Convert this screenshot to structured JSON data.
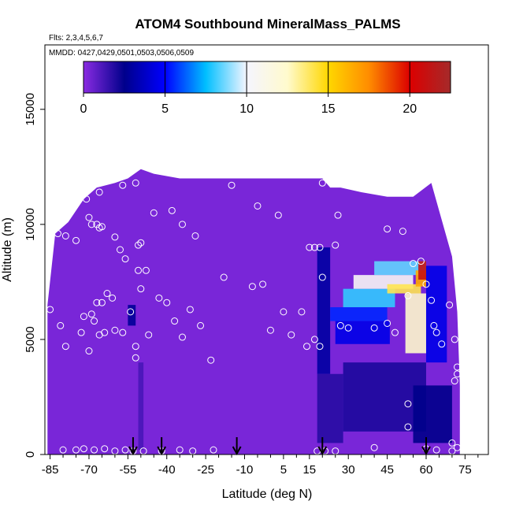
{
  "chart_data": {
    "type": "heatmap",
    "title": "ATOM4 Southbound MineralMass_PALMS",
    "flights_note": "Flts: 2,3,4,5,6,7",
    "dates_note": "MMDD: 0427,0429,0501,0503,0506,0509",
    "xlabel": "Latitude (deg N)",
    "ylabel": "Altitude (m)",
    "xlim": [
      -87,
      84
    ],
    "ylim": [
      0,
      17800
    ],
    "x_ticks": [
      -85,
      -70,
      -55,
      -40,
      -25,
      -10,
      5,
      15,
      30,
      45,
      60,
      75
    ],
    "x_tick_labels": [
      "-85",
      "-70",
      "-55",
      "-40",
      "-25",
      "-10",
      "5",
      "15",
      "30",
      "45",
      "60",
      "75"
    ],
    "y_ticks": [
      0,
      5000,
      10000,
      15000
    ],
    "y_tick_labels": [
      "0",
      "5000",
      "10000",
      "15000"
    ],
    "colorbar": {
      "min": 0,
      "max": 22.5,
      "ticks": [
        0,
        5,
        10,
        15,
        20
      ],
      "tick_labels": [
        "0",
        "5",
        "10",
        "15",
        "20"
      ],
      "stops": [
        {
          "v": 0,
          "color": "#8a2be2"
        },
        {
          "v": 2.5,
          "color": "#00008b"
        },
        {
          "v": 5,
          "color": "#0000ff"
        },
        {
          "v": 7.5,
          "color": "#00bfff"
        },
        {
          "v": 10,
          "color": "#f5f5ff"
        },
        {
          "v": 12.5,
          "color": "#fffacd"
        },
        {
          "v": 15,
          "color": "#ffd700"
        },
        {
          "v": 17.5,
          "color": "#ff8c00"
        },
        {
          "v": 20,
          "color": "#dc0000"
        },
        {
          "v": 22.5,
          "color": "#a52a2a"
        }
      ]
    },
    "background_value": 0.3,
    "curtain_profile": [
      [
        -86,
        0,
        6500
      ],
      [
        -83,
        0,
        9600
      ],
      [
        -78,
        0,
        10100
      ],
      [
        -72,
        0,
        11100
      ],
      [
        -67,
        0,
        11600
      ],
      [
        -60,
        0,
        11800
      ],
      [
        -55,
        0,
        12000
      ],
      [
        -50,
        0,
        12400
      ],
      [
        -45,
        0,
        12200
      ],
      [
        -35,
        0,
        12000
      ],
      [
        -20,
        0,
        12000
      ],
      [
        0,
        0,
        12000
      ],
      [
        20,
        0,
        12000
      ],
      [
        23,
        0,
        11600
      ],
      [
        27,
        0,
        11600
      ],
      [
        35,
        0,
        11400
      ],
      [
        45,
        0,
        11200
      ],
      [
        55,
        0,
        11200
      ],
      [
        62,
        0,
        11800
      ],
      [
        65,
        0,
        10600
      ],
      [
        70,
        0,
        8600
      ],
      [
        72,
        0,
        6200
      ],
      [
        73,
        0,
        3000
      ]
    ],
    "enhanced_regions": [
      {
        "x0": 18,
        "x1": 23,
        "y0": 3500,
        "y1": 9000,
        "value": 3.0
      },
      {
        "x0": 23,
        "x1": 45,
        "y0": 5800,
        "y1": 6400,
        "value": 5.5
      },
      {
        "x0": 28,
        "x1": 48,
        "y0": 6400,
        "y1": 7200,
        "value": 8.0
      },
      {
        "x0": 32,
        "x1": 55,
        "y0": 7200,
        "y1": 7800,
        "value": 10.5
      },
      {
        "x0": 40,
        "x1": 60,
        "y0": 7800,
        "y1": 8400,
        "value": 8.5
      },
      {
        "x0": 25,
        "x1": 46,
        "y0": 4800,
        "y1": 5800,
        "value": 4.5
      },
      {
        "x0": 45,
        "x1": 58,
        "y0": 7000,
        "y1": 7400,
        "value": 14.0
      },
      {
        "x0": 52,
        "x1": 60,
        "y0": 4400,
        "y1": 7000,
        "value": 12.5
      },
      {
        "x0": 56,
        "x1": 60,
        "y0": 7300,
        "y1": 8000,
        "value": 16.5
      },
      {
        "x0": 57,
        "x1": 60,
        "y0": 7600,
        "y1": 8400,
        "value": 21.0
      },
      {
        "x0": 60,
        "x1": 68,
        "y0": 4000,
        "y1": 8200,
        "value": 4.5
      },
      {
        "x0": 18,
        "x1": 28,
        "y0": 500,
        "y1": 3500,
        "value": 1.8
      },
      {
        "x0": 28,
        "x1": 60,
        "y0": 1000,
        "y1": 4000,
        "value": 2.0
      },
      {
        "x0": 55,
        "x1": 70,
        "y0": 500,
        "y1": 3000,
        "value": 2.5
      },
      {
        "x0": -55,
        "x1": -52,
        "y0": 5600,
        "y1": 6500,
        "value": 2.8
      },
      {
        "x0": -51,
        "x1": -49,
        "y0": 200,
        "y1": 4000,
        "value": 1.2
      }
    ],
    "sample_points": [
      [
        -85,
        6300
      ],
      [
        -82,
        9600
      ],
      [
        -79,
        9500
      ],
      [
        -75,
        9300
      ],
      [
        -71,
        11100
      ],
      [
        -66,
        11400
      ],
      [
        -70,
        10300
      ],
      [
        -69,
        10000
      ],
      [
        -67,
        10000
      ],
      [
        -66,
        9850
      ],
      [
        -65,
        9900
      ],
      [
        -60,
        9450
      ],
      [
        -58,
        8900
      ],
      [
        -57,
        11700
      ],
      [
        -56,
        8500
      ],
      [
        -52,
        11800
      ],
      [
        -51,
        9100
      ],
      [
        -50,
        9200
      ],
      [
        -51,
        8000
      ],
      [
        -48,
        8000
      ],
      [
        -50,
        7200
      ],
      [
        -45,
        10500
      ],
      [
        -38,
        10600
      ],
      [
        -34,
        10000
      ],
      [
        -29,
        9500
      ],
      [
        -15,
        11700
      ],
      [
        -5,
        10800
      ],
      [
        3,
        10400
      ],
      [
        20,
        11800
      ],
      [
        26,
        10400
      ],
      [
        45,
        9800
      ],
      [
        51,
        9700
      ],
      [
        -81,
        5600
      ],
      [
        -79,
        4700
      ],
      [
        -73,
        5300
      ],
      [
        -70,
        4500
      ],
      [
        -72,
        6000
      ],
      [
        -69,
        6100
      ],
      [
        -68,
        5800
      ],
      [
        -67,
        6600
      ],
      [
        -65,
        6600
      ],
      [
        -63,
        7000
      ],
      [
        -61,
        6800
      ],
      [
        -66,
        5200
      ],
      [
        -64,
        5300
      ],
      [
        -60,
        5400
      ],
      [
        -57,
        5300
      ],
      [
        -54,
        6200
      ],
      [
        -52,
        4700
      ],
      [
        -52,
        4200
      ],
      [
        -47,
        5200
      ],
      [
        -43,
        6800
      ],
      [
        -40,
        6600
      ],
      [
        -37,
        5800
      ],
      [
        -34,
        5100
      ],
      [
        -31,
        6300
      ],
      [
        -27,
        5600
      ],
      [
        -23,
        4100
      ],
      [
        -18,
        7700
      ],
      [
        -7,
        7300
      ],
      [
        -3,
        7400
      ],
      [
        0,
        5400
      ],
      [
        5,
        6200
      ],
      [
        8,
        5200
      ],
      [
        12,
        6200
      ],
      [
        14,
        4700
      ],
      [
        17,
        5000
      ],
      [
        19,
        4700
      ],
      [
        20,
        7700
      ],
      [
        15,
        9000
      ],
      [
        17,
        9000
      ],
      [
        19,
        9000
      ],
      [
        25,
        9100
      ],
      [
        27,
        5600
      ],
      [
        30,
        5500
      ],
      [
        40,
        5500
      ],
      [
        45,
        5700
      ],
      [
        48,
        5300
      ],
      [
        53,
        6900
      ],
      [
        55,
        8300
      ],
      [
        58,
        8400
      ],
      [
        60,
        7400
      ],
      [
        62,
        6700
      ],
      [
        63,
        5600
      ],
      [
        64,
        5300
      ],
      [
        66,
        4800
      ],
      [
        69,
        6500
      ],
      [
        71,
        5000
      ],
      [
        72,
        3800
      ],
      [
        71,
        3200
      ],
      [
        72,
        3500
      ],
      [
        53,
        2200
      ],
      [
        53,
        1200
      ],
      [
        70,
        500
      ],
      [
        72,
        300
      ],
      [
        -80,
        200
      ],
      [
        -75,
        200
      ],
      [
        -72,
        250
      ],
      [
        -68,
        200
      ],
      [
        -64,
        250
      ],
      [
        -60,
        150
      ],
      [
        -56,
        200
      ],
      [
        -53,
        150
      ],
      [
        -49,
        150
      ],
      [
        -42,
        150
      ],
      [
        -35,
        200
      ],
      [
        -30,
        150
      ],
      [
        -22,
        200
      ],
      [
        18,
        150
      ],
      [
        21,
        150
      ],
      [
        25,
        150
      ],
      [
        40,
        300
      ],
      [
        60,
        250
      ],
      [
        64,
        200
      ],
      [
        70,
        150
      ]
    ],
    "arrows_x": [
      -53,
      -42,
      -13,
      20,
      60
    ]
  }
}
